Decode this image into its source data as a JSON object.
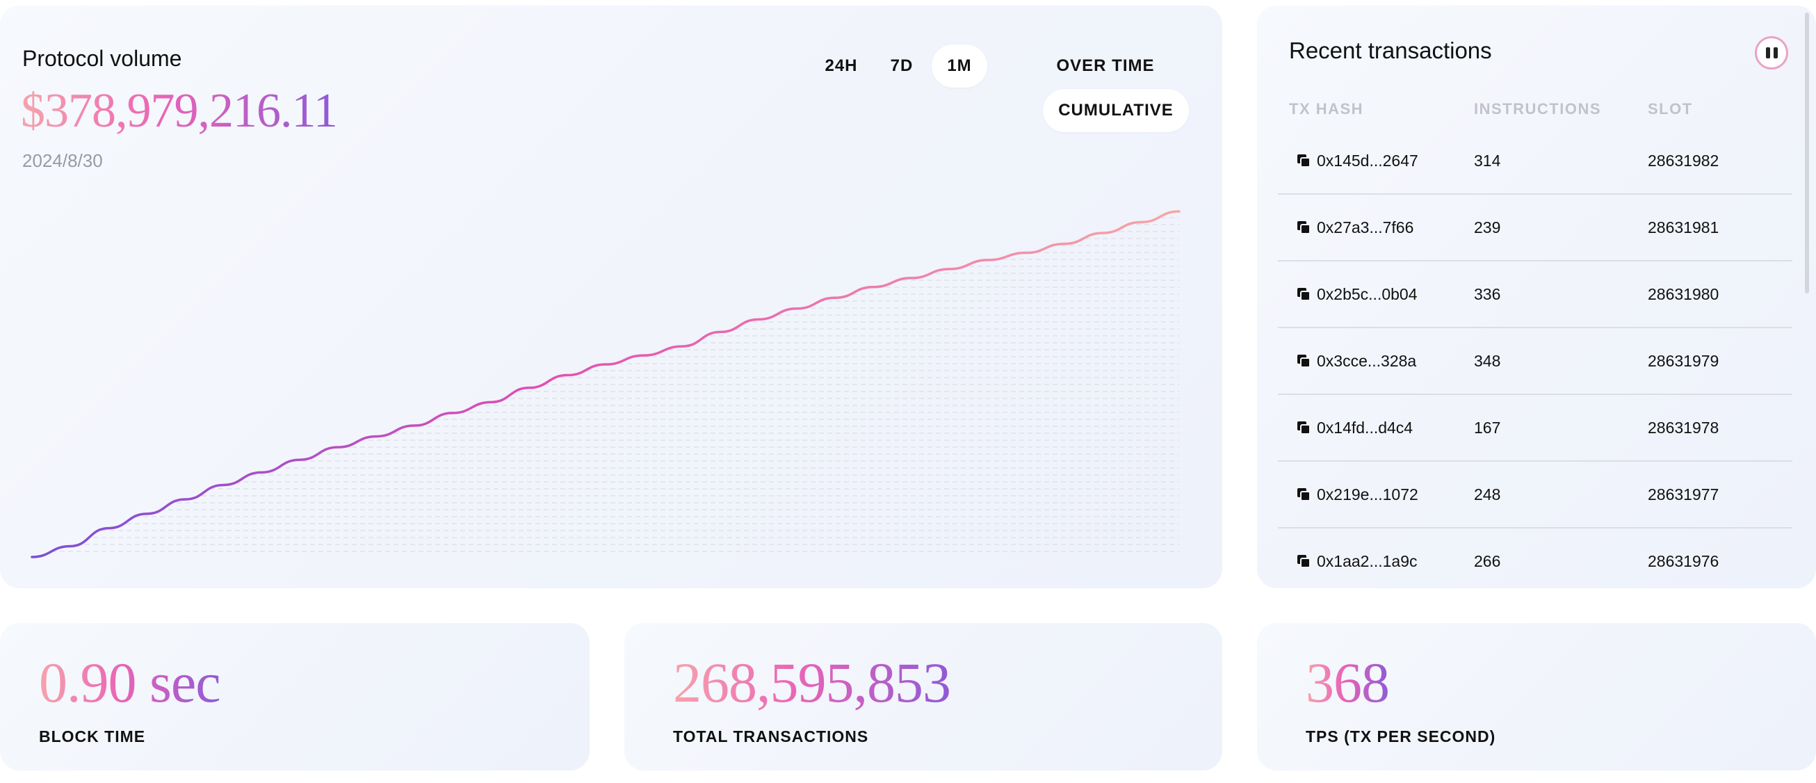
{
  "protocol_volume": {
    "title": "Protocol volume",
    "value": "$378,979,216.11",
    "date": "2024/8/30",
    "range_buttons": [
      {
        "label": "24H",
        "active": false
      },
      {
        "label": "7D",
        "active": false
      },
      {
        "label": "1M",
        "active": true
      }
    ],
    "mode_buttons": [
      {
        "label": "OVER TIME",
        "active": false
      },
      {
        "label": "CUMULATIVE",
        "active": true
      }
    ]
  },
  "chart_data": {
    "type": "line",
    "title": "",
    "xlabel": "",
    "ylabel": "",
    "grid": false,
    "series": [
      {
        "values": [
          0.0,
          0.03,
          0.08,
          0.12,
          0.16,
          0.2,
          0.235,
          0.27,
          0.305,
          0.335,
          0.365,
          0.4,
          0.43,
          0.47,
          0.505,
          0.535,
          0.56,
          0.585,
          0.625,
          0.66,
          0.69,
          0.72,
          0.75,
          0.775,
          0.8,
          0.825,
          0.845,
          0.87,
          0.9,
          0.93,
          0.96
        ]
      }
    ],
    "colors": {
      "start": "#7b4fd6",
      "middle": "#e14fb3",
      "end": "#f7a7a4"
    }
  },
  "transactions": {
    "title": "Recent transactions",
    "pause_icon": "pause-icon",
    "columns": [
      "TX HASH",
      "INSTRUCTIONS",
      "SLOT"
    ],
    "rows": [
      {
        "hash": "0x145d...2647",
        "instructions": "314",
        "slot": "28631982"
      },
      {
        "hash": "0x27a3...7f66",
        "instructions": "239",
        "slot": "28631981"
      },
      {
        "hash": "0x2b5c...0b04",
        "instructions": "336",
        "slot": "28631980"
      },
      {
        "hash": "0x3cce...328a",
        "instructions": "348",
        "slot": "28631979"
      },
      {
        "hash": "0x14fd...d4c4",
        "instructions": "167",
        "slot": "28631978"
      },
      {
        "hash": "0x219e...1072",
        "instructions": "248",
        "slot": "28631977"
      },
      {
        "hash": "0x1aa2...1a9c",
        "instructions": "266",
        "slot": "28631976"
      }
    ]
  },
  "stats": {
    "block_time": {
      "value": "0.90 sec",
      "label": "BLOCK TIME"
    },
    "total_transactions": {
      "value": "268,595,853",
      "label": "TOTAL TRANSACTIONS"
    },
    "tps": {
      "value": "368",
      "label": "TPS (TX PER SECOND)"
    }
  }
}
